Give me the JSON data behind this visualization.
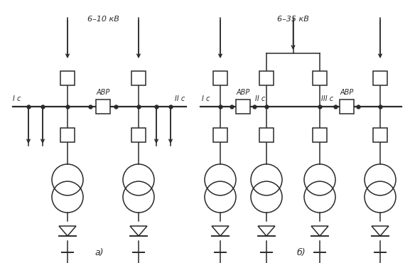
{
  "title_a": "а)",
  "title_b": "б)",
  "label_6_10": "6–10 кВ",
  "label_6_35": "6–35 кВ",
  "label_Ic_a": "I с",
  "label_IIc_a": "II с",
  "label_ABR_a": "АВР",
  "label_Ic_b": "I с",
  "label_IIc_b": "II с",
  "label_IIIc_b": "III с",
  "label_ABR_b1": "АВР",
  "label_ABR_b2": "АВР",
  "bg_color": "#ffffff",
  "line_color": "#2a2a2a"
}
